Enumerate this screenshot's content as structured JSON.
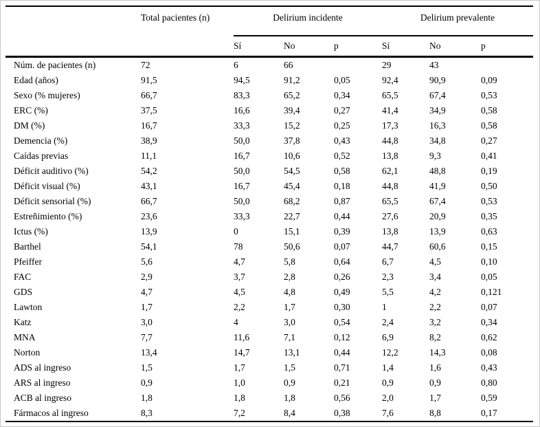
{
  "page": {
    "background": "#ffffff",
    "frame_border_color": "#c9c9c9",
    "rule_color": "#000000",
    "text_color": "#000000"
  },
  "table": {
    "corner_label": "",
    "total_header": "Total pacientes (n)",
    "group_headers": [
      "Delirium incidente",
      "Delirium prevalente"
    ],
    "sub_headers": [
      "Sí",
      "No",
      "p",
      "Sí",
      "No",
      "p"
    ],
    "rows": [
      {
        "label": "Núm. de pacientes (n)",
        "values": [
          "72",
          "6",
          "66",
          "",
          "29",
          "43",
          ""
        ]
      },
      {
        "label": "Edad (años)",
        "values": [
          "91,5",
          "94,5",
          "91,2",
          "0,05",
          "92,4",
          "90,9",
          "0,09"
        ]
      },
      {
        "label": "Sexo (% mujeres)",
        "values": [
          "66,7",
          "83,3",
          "65,2",
          "0,34",
          "65,5",
          "67,4",
          "0,53"
        ]
      },
      {
        "label": "ERC (%)",
        "values": [
          "37,5",
          "16,6",
          "39,4",
          "0,27",
          "41,4",
          "34,9",
          "0,58"
        ]
      },
      {
        "label": "DM (%)",
        "values": [
          "16,7",
          "33,3",
          "15,2",
          "0,25",
          "17,3",
          "16,3",
          "0,58"
        ]
      },
      {
        "label": "Demencia (%)",
        "values": [
          "38,9",
          "50,0",
          "37,8",
          "0,43",
          "44,8",
          "34,8",
          "0,27"
        ]
      },
      {
        "label": "Caídas previas",
        "values": [
          "11,1",
          "16,7",
          "10,6",
          "0,52",
          "13,8",
          "9,3",
          "0,41"
        ]
      },
      {
        "label": "Déficit auditivo (%)",
        "values": [
          "54,2",
          "50,0",
          "54,5",
          "0,58",
          "62,1",
          "48,8",
          "0,19"
        ]
      },
      {
        "label": "Déficit visual (%)",
        "values": [
          "43,1",
          "16,7",
          "45,4",
          "0,18",
          "44,8",
          "41,9",
          "0,50"
        ]
      },
      {
        "label": "Déficit sensorial (%)",
        "values": [
          "66,7",
          "50,0",
          "68,2",
          "0,87",
          "65,5",
          "67,4",
          "0,53"
        ]
      },
      {
        "label": "Estreñimiento (%)",
        "values": [
          "23,6",
          "33,3",
          "22,7",
          "0,44",
          "27,6",
          "20,9",
          "0,35"
        ]
      },
      {
        "label": "Ictus (%)",
        "values": [
          "13,9",
          "0",
          "15,1",
          "0,39",
          "13,8",
          "13,9",
          "0,63"
        ]
      },
      {
        "label": "Barthel",
        "values": [
          "54,1",
          "78",
          "50,6",
          "0,07",
          "44,7",
          "60,6",
          "0,15"
        ]
      },
      {
        "label": "Pfeiffer",
        "values": [
          "5,6",
          "4,7",
          "5,8",
          "0,64",
          "6,7",
          "4,5",
          "0,10"
        ]
      },
      {
        "label": "FAC",
        "values": [
          "2,9",
          "3,7",
          "2,8",
          "0,26",
          "2,3",
          "3,4",
          "0,05"
        ]
      },
      {
        "label": "GDS",
        "values": [
          "4,7",
          "4,5",
          "4,8",
          "0,49",
          "5,5",
          "4,2",
          "0,121"
        ]
      },
      {
        "label": "Lawton",
        "values": [
          "1,7",
          "2,2",
          "1,7",
          "0,30",
          "1",
          "2,2",
          "0,07"
        ]
      },
      {
        "label": "Katz",
        "values": [
          "3,0",
          "4",
          "3,0",
          "0,54",
          "2,4",
          "3,2",
          "0,34"
        ]
      },
      {
        "label": "MNA",
        "values": [
          "7,7",
          "11,6",
          "7,1",
          "0,12",
          "6,9",
          "8,2",
          "0,62"
        ]
      },
      {
        "label": "Norton",
        "values": [
          "13,4",
          "14,7",
          "13,1",
          "0,44",
          "12,2",
          "14,3",
          "0,08"
        ]
      },
      {
        "label": "ADS al ingreso",
        "values": [
          "1,5",
          "1,7",
          "1,5",
          "0,71",
          "1,4",
          "1,6",
          "0,43"
        ]
      },
      {
        "label": "ARS al ingreso",
        "values": [
          "0,9",
          "1,0",
          "0,9",
          "0,21",
          "0,9",
          "0,9",
          "0,80"
        ]
      },
      {
        "label": "ACB al ingreso",
        "values": [
          "1,8",
          "1,8",
          "1,8",
          "0,56",
          "2,0",
          "1,7",
          "0,59"
        ]
      },
      {
        "label": "Fármacos al ingreso",
        "values": [
          "8,3",
          "7,2",
          "8,4",
          "0,38",
          "7,6",
          "8,8",
          "0,17"
        ]
      }
    ]
  }
}
